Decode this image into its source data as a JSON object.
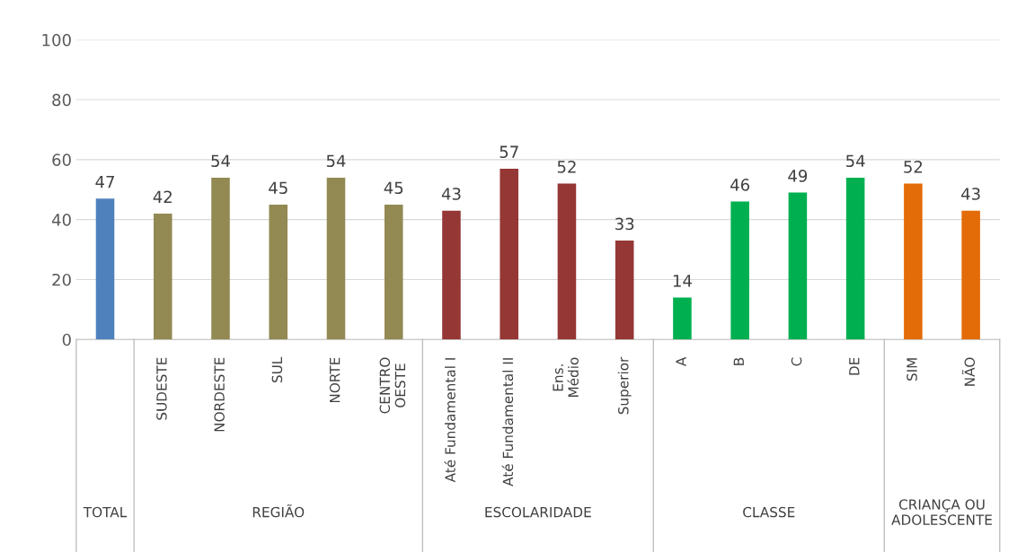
{
  "chart_data": {
    "type": "bar",
    "categories": [
      null,
      "SUDESTE",
      "NORDESTE",
      "SUL",
      "NORTE",
      "CENTRO\nOESTE",
      "Até Fundamental I",
      "Até Fundamental II",
      "Ens.\nMédio",
      "Superior",
      "A",
      "B",
      "C",
      "DE",
      "SIM",
      "NÃO"
    ],
    "values": [
      47,
      42,
      54,
      45,
      54,
      45,
      43,
      57,
      52,
      33,
      14,
      46,
      49,
      54,
      52,
      43
    ],
    "colors": [
      "#4f81bd",
      "#938953",
      "#938953",
      "#938953",
      "#938953",
      "#938953",
      "#953735",
      "#953735",
      "#953735",
      "#953735",
      "#00b050",
      "#00b050",
      "#00b050",
      "#00b050",
      "#e36c09",
      "#e36c09"
    ],
    "data_labels": true,
    "ylim": [
      0,
      100
    ],
    "yticks": [
      0,
      20,
      40,
      60,
      80,
      100
    ],
    "grid": "y",
    "annotations": [
      "TOTAL",
      "REGIÃO",
      "ESCOLARIDADE",
      "CLASSE",
      "CRIANÇA OU\nADOLESCENTE"
    ]
  }
}
